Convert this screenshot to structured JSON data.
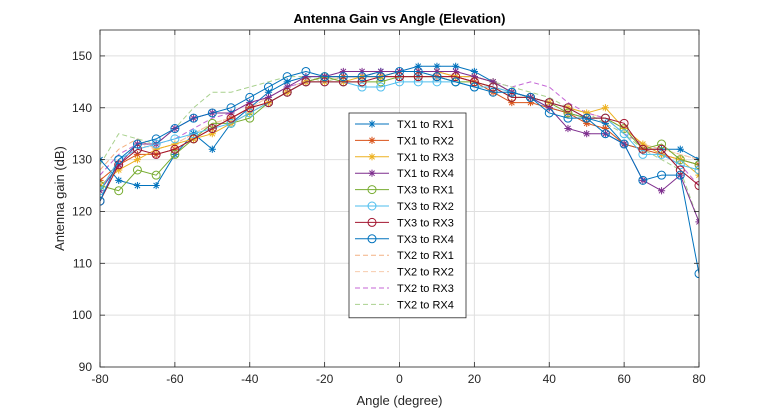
{
  "chart_data": {
    "type": "line",
    "title": "Antenna Gain vs Angle (Elevation)",
    "xlabel": "Angle (degree)",
    "ylabel": "Antenna gain (dB)",
    "xlim": [
      -80,
      80
    ],
    "ylim": [
      90,
      155
    ],
    "xticks": [
      -80,
      -60,
      -40,
      -20,
      0,
      20,
      40,
      60,
      80
    ],
    "yticks": [
      90,
      100,
      110,
      120,
      130,
      140,
      150
    ],
    "grid": true,
    "legend_position": "center",
    "x": [
      -80,
      -75,
      -70,
      -65,
      -60,
      -55,
      -50,
      -45,
      -40,
      -35,
      -30,
      -25,
      -20,
      -15,
      -10,
      -5,
      0,
      5,
      10,
      15,
      20,
      25,
      30,
      35,
      40,
      45,
      50,
      55,
      60,
      65,
      70,
      75,
      80
    ],
    "series": [
      {
        "name": "TX1 to RX1",
        "color": "#0072BD",
        "marker": "asterisk",
        "dashed": false,
        "values": [
          130,
          126,
          125,
          125,
          131,
          135,
          132,
          137,
          140,
          143,
          145,
          146,
          146,
          146,
          146,
          147,
          147,
          148,
          148,
          148,
          147,
          145,
          143,
          142,
          140,
          139,
          138,
          137,
          133,
          132,
          132,
          132,
          130
        ]
      },
      {
        "name": "TX1 to RX2",
        "color": "#D95319",
        "marker": "asterisk",
        "dashed": false,
        "values": [
          126,
          129,
          131,
          131,
          132,
          134,
          136,
          138,
          140,
          141,
          143,
          145,
          146,
          146,
          146,
          146,
          146,
          146,
          146,
          146,
          145,
          143,
          141,
          141,
          140,
          139,
          137,
          136,
          133,
          132,
          131,
          130,
          129
        ]
      },
      {
        "name": "TX1 to RX3",
        "color": "#EDB120",
        "marker": "asterisk",
        "dashed": false,
        "values": [
          125,
          128,
          130,
          132,
          133,
          134,
          135,
          137,
          139,
          141,
          143,
          145,
          145,
          145,
          146,
          146,
          147,
          147,
          147,
          146,
          146,
          145,
          143,
          142,
          141,
          140,
          139,
          140,
          136,
          133,
          131,
          130,
          127
        ]
      },
      {
        "name": "TX1 to RX4",
        "color": "#7E2F8E",
        "marker": "asterisk",
        "dashed": false,
        "values": [
          124,
          129,
          133,
          133,
          136,
          138,
          139,
          139,
          141,
          142,
          144,
          146,
          146,
          147,
          147,
          147,
          147,
          147,
          147,
          147,
          146,
          145,
          143,
          142,
          140,
          136,
          135,
          135,
          133,
          126,
          124,
          127,
          118
        ]
      },
      {
        "name": "TX3 to RX1",
        "color": "#77AC30",
        "marker": "circle",
        "dashed": false,
        "values": [
          125,
          124,
          128,
          127,
          131,
          134,
          137,
          137,
          138,
          141,
          143,
          145,
          146,
          145,
          145,
          145,
          146,
          146,
          146,
          145,
          145,
          144,
          142,
          142,
          141,
          139,
          138,
          138,
          136,
          132,
          133,
          130,
          129
        ]
      },
      {
        "name": "TX3 to RX2",
        "color": "#4DBEEE",
        "marker": "circle",
        "dashed": false,
        "values": [
          124,
          130,
          132,
          133,
          134,
          135,
          136,
          137,
          139,
          141,
          143,
          145,
          145,
          145,
          144,
          144,
          145,
          145,
          145,
          145,
          144,
          144,
          143,
          142,
          141,
          140,
          138,
          138,
          135,
          131,
          131,
          129,
          128
        ]
      },
      {
        "name": "TX3 to RX3",
        "color": "#A2142F",
        "marker": "circle",
        "dashed": false,
        "values": [
          122,
          129,
          132,
          131,
          132,
          134,
          136,
          138,
          140,
          141,
          143,
          145,
          145,
          145,
          145,
          146,
          146,
          146,
          146,
          146,
          145,
          144,
          142,
          142,
          141,
          140,
          138,
          138,
          137,
          132,
          132,
          128,
          125
        ]
      },
      {
        "name": "TX3 to RX4",
        "color": "#0072BD",
        "marker": "circle",
        "dashed": false,
        "values": [
          122,
          130,
          133,
          134,
          136,
          138,
          139,
          140,
          142,
          144,
          146,
          147,
          146,
          146,
          146,
          146,
          147,
          147,
          146,
          145,
          144,
          143,
          143,
          142,
          139,
          138,
          138,
          135,
          133,
          126,
          127,
          127,
          108
        ]
      },
      {
        "name": "TX2 to RX1",
        "color": "#F4B183",
        "marker": "none",
        "dashed": true,
        "values": [
          128,
          132,
          134,
          132,
          133,
          135,
          137,
          138,
          140,
          142,
          144,
          145,
          145,
          146,
          146,
          147,
          147,
          147,
          147,
          146,
          145,
          144,
          143,
          142,
          141,
          140,
          139,
          138,
          136,
          133,
          132,
          131,
          130
        ]
      },
      {
        "name": "TX2 to RX2",
        "color": "#F8CBAD",
        "marker": "none",
        "dashed": true,
        "values": [
          127,
          131,
          133,
          132,
          133,
          135,
          137,
          138,
          140,
          142,
          144,
          145,
          145,
          146,
          146,
          147,
          147,
          147,
          147,
          146,
          145,
          144,
          143,
          142,
          141,
          140,
          139,
          138,
          136,
          133,
          132,
          131,
          130
        ]
      },
      {
        "name": "TX2 to RX3",
        "color": "#C465D6",
        "marker": "none",
        "dashed": true,
        "values": [
          127,
          131,
          133,
          133,
          134,
          136,
          138,
          139,
          141,
          142,
          144,
          145,
          146,
          146,
          146,
          147,
          147,
          147,
          147,
          146,
          146,
          145,
          144,
          145,
          144,
          141,
          139,
          138,
          135,
          133,
          131,
          129,
          125
        ]
      },
      {
        "name": "TX2 to RX4",
        "color": "#A9D18E",
        "marker": "none",
        "dashed": true,
        "values": [
          129,
          135,
          134,
          133,
          136,
          140,
          143,
          143,
          144,
          145,
          146,
          146,
          145,
          146,
          146,
          147,
          147,
          147,
          146,
          146,
          146,
          145,
          144,
          143,
          142,
          140,
          139,
          137,
          135,
          132,
          130,
          128,
          118
        ]
      }
    ]
  }
}
